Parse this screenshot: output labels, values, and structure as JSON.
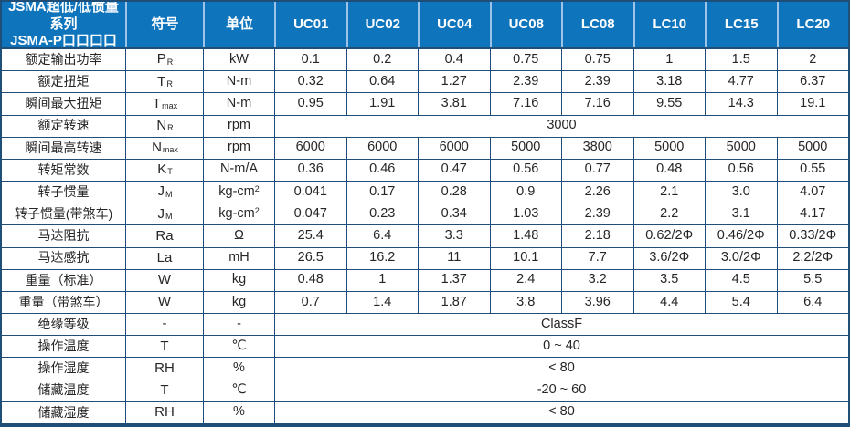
{
  "colors": {
    "header_bg": "#0E74BC",
    "header_text": "#FFFFFF",
    "border": "#1F4E79",
    "header_divider": "#9DC3E6",
    "text": "#262626"
  },
  "header": {
    "title_line1": "JSMA超低/低惯量系列",
    "title_line2": "JSMA-P口口口口",
    "symbol_col": "符号",
    "unit_col": "单位",
    "models": [
      "UC01",
      "UC02",
      "UC04",
      "UC08",
      "LC08",
      "LC10",
      "LC15",
      "LC20"
    ]
  },
  "rows": [
    {
      "label": "额定输出功率",
      "symbol": "P",
      "symbol_sub": "R",
      "unit": "kW",
      "values": [
        "0.1",
        "0.2",
        "0.4",
        "0.75",
        "0.75",
        "1",
        "1.5",
        "2"
      ]
    },
    {
      "label": "额定扭矩",
      "symbol": "T",
      "symbol_sub": "R",
      "unit": "N-m",
      "values": [
        "0.32",
        "0.64",
        "1.27",
        "2.39",
        "2.39",
        "3.18",
        "4.77",
        "6.37"
      ]
    },
    {
      "label": "瞬间最大扭矩",
      "symbol": "T",
      "symbol_sub": "max",
      "unit": "N-m",
      "values": [
        "0.95",
        "1.91",
        "3.81",
        "7.16",
        "7.16",
        "9.55",
        "14.3",
        "19.1"
      ]
    },
    {
      "label": "额定转速",
      "symbol": "N",
      "symbol_sub": "R",
      "unit": "rpm",
      "merged": "3000"
    },
    {
      "label": "瞬间最高转速",
      "symbol": "N",
      "symbol_sub": "max",
      "unit": "rpm",
      "values": [
        "6000",
        "6000",
        "6000",
        "5000",
        "3800",
        "5000",
        "5000",
        "5000"
      ]
    },
    {
      "label": "转矩常数",
      "symbol": "K",
      "symbol_sub": "T",
      "unit": "N-m/A",
      "values": [
        "0.36",
        "0.46",
        "0.47",
        "0.56",
        "0.77",
        "0.48",
        "0.56",
        "0.55"
      ]
    },
    {
      "label": "转子惯量",
      "symbol": "J",
      "symbol_sub": "M",
      "unit": "kg-cm",
      "unit_sup": "2",
      "values": [
        "0.041",
        "0.17",
        "0.28",
        "0.9",
        "2.26",
        "2.1",
        "3.0",
        "4.07"
      ]
    },
    {
      "label": "转子惯量(带煞车)",
      "symbol": "J",
      "symbol_sub": "M",
      "unit": "kg-cm",
      "unit_sup": "2",
      "values": [
        "0.047",
        "0.23",
        "0.34",
        "1.03",
        "2.39",
        "2.2",
        "3.1",
        "4.17"
      ]
    },
    {
      "label": "马达阻抗",
      "symbol": "Ra",
      "unit": "Ω",
      "values": [
        "25.4",
        "6.4",
        "3.3",
        "1.48",
        "2.18",
        "0.62/2Φ",
        "0.46/2Φ",
        "0.33/2Φ"
      ]
    },
    {
      "label": "马达感抗",
      "symbol": "La",
      "unit": "mH",
      "values": [
        "26.5",
        "16.2",
        "11",
        "10.1",
        "7.7",
        "3.6/2Φ",
        "3.0/2Φ",
        "2.2/2Φ"
      ]
    },
    {
      "label": "重量（标准）",
      "symbol": "W",
      "unit": "kg",
      "values": [
        "0.48",
        "1",
        "1.37",
        "2.4",
        "3.2",
        "3.5",
        "4.5",
        "5.5"
      ]
    },
    {
      "label": "重量（带煞车）",
      "symbol": "W",
      "unit": "kg",
      "values": [
        "0.7",
        "1.4",
        "1.87",
        "3.8",
        "3.96",
        "4.4",
        "5.4",
        "6.4"
      ]
    },
    {
      "label": "绝缘等级",
      "symbol": "-",
      "unit": "-",
      "merged": "ClassF"
    },
    {
      "label": "操作温度",
      "symbol": "T",
      "unit": "℃",
      "merged": "0 ~ 40"
    },
    {
      "label": "操作湿度",
      "symbol": "RH",
      "unit": "%",
      "merged": "< 80"
    },
    {
      "label": "储藏温度",
      "symbol": "T",
      "unit": "℃",
      "merged": "-20 ~ 60"
    },
    {
      "label": "储藏湿度",
      "symbol": "RH",
      "unit": "%",
      "merged": "< 80"
    }
  ]
}
